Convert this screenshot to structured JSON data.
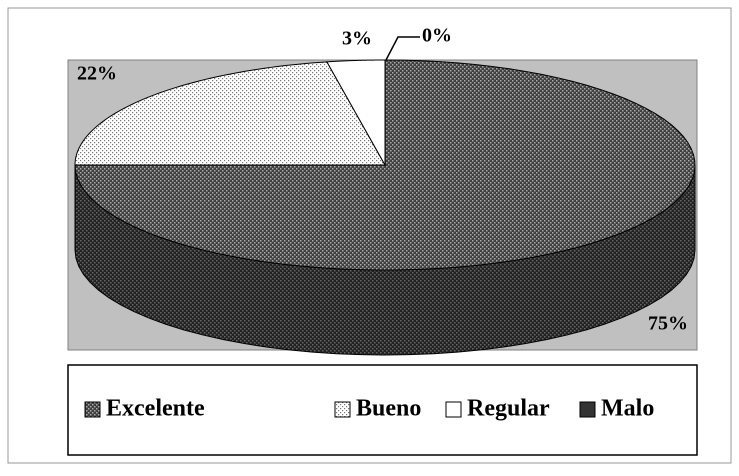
{
  "chart_data": {
    "type": "pie3d",
    "categories": [
      "Excelente",
      "Bueno",
      "Regular",
      "Malo"
    ],
    "values": [
      75,
      22,
      3,
      0
    ],
    "value_labels": [
      "75%",
      "22%",
      "3%",
      "0%"
    ],
    "colors": [
      "#505050",
      "#f0f0f0",
      "#ffffff",
      "#333333"
    ],
    "legend": "bottom"
  }
}
